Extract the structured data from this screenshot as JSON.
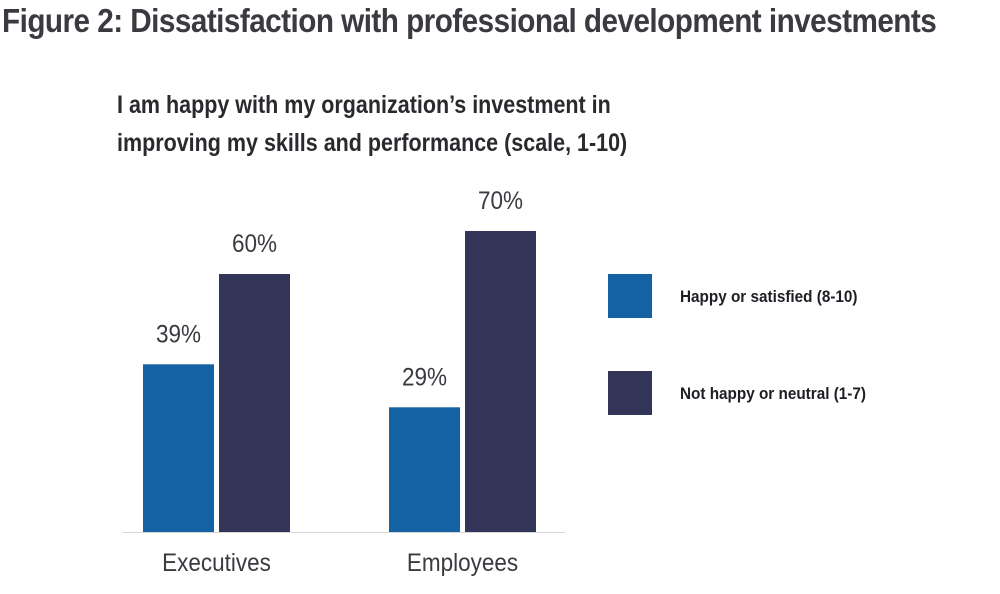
{
  "figure": {
    "title": "Figure 2: Dissatisfaction with professional development investments"
  },
  "chart_data": {
    "type": "bar",
    "title_lines": [
      "I am happy with my organization’s investment in",
      "improving my skills and performance (scale, 1-10)"
    ],
    "categories": [
      "Executives",
      "Employees"
    ],
    "series": [
      {
        "name": "Happy or satisfied (8-10)",
        "values": [
          39,
          29
        ],
        "labels": [
          "39%",
          "29%"
        ],
        "color": "#1461a3"
      },
      {
        "name": "Not happy or neutral (1-7)",
        "values": [
          60,
          70
        ],
        "labels": [
          "60%",
          "70%"
        ],
        "color": "#323558"
      }
    ],
    "ylim": [
      0,
      100
    ],
    "unit": "%",
    "grid": false,
    "legend_position": "right"
  }
}
